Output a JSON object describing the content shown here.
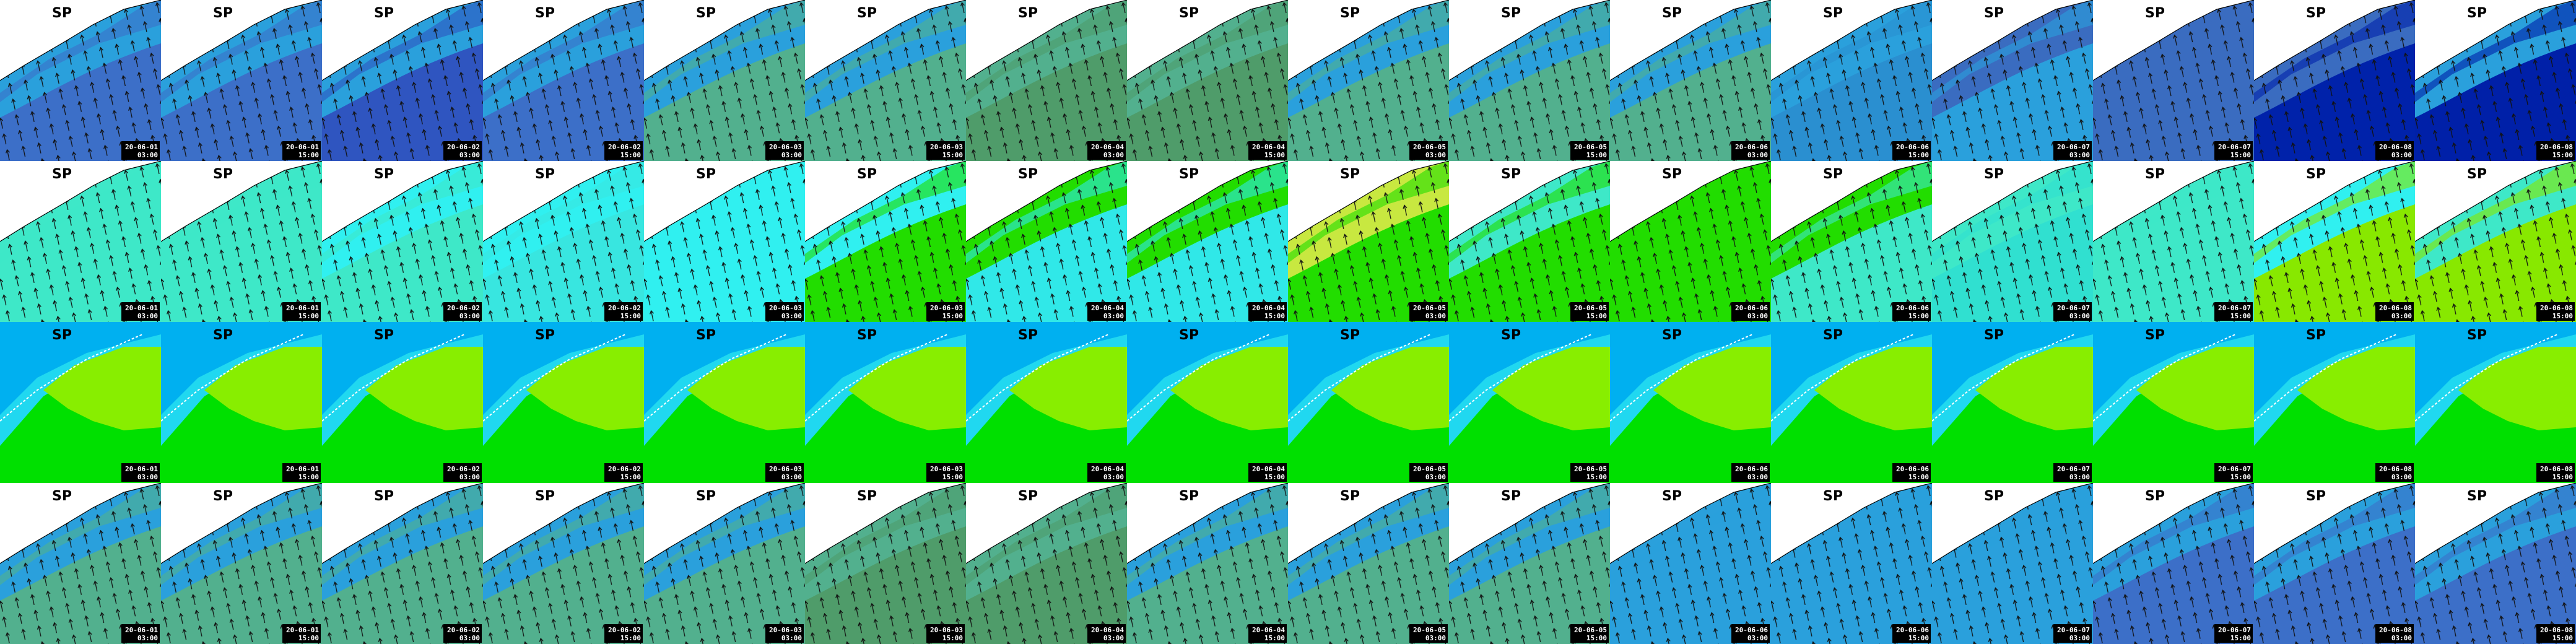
{
  "rows": [
    {
      "tiles": [
        {
          "title": "SP",
          "date": "20-06-01",
          "time": "03:00"
        },
        {
          "title": "SP",
          "date": "20-06-01",
          "time": "15:00"
        },
        {
          "title": "SP",
          "date": "20-06-02",
          "time": "03:00"
        },
        {
          "title": "SP",
          "date": "20-06-02",
          "time": "15:00"
        },
        {
          "title": "SP",
          "date": "20-06-03",
          "time": "03:00"
        },
        {
          "title": "SP",
          "date": "20-06-03",
          "time": "15:00"
        },
        {
          "title": "SP",
          "date": "20-06-04",
          "time": "03:00"
        },
        {
          "title": "SP",
          "date": "20-06-04",
          "time": "15:00"
        },
        {
          "title": "SP",
          "date": "20-06-05",
          "time": "03:00"
        },
        {
          "title": "SP",
          "date": "20-06-05",
          "time": "15:00"
        },
        {
          "title": "SP",
          "date": "20-06-06",
          "time": "03:00"
        },
        {
          "title": "SP",
          "date": "20-06-06",
          "time": "15:00"
        },
        {
          "title": "SP",
          "date": "20-06-07",
          "time": "03:00"
        },
        {
          "title": "SP",
          "date": "20-06-07",
          "time": "15:00"
        },
        {
          "title": "SP",
          "date": "20-06-08",
          "time": "03:00"
        },
        {
          "title": "SP",
          "date": "20-06-08",
          "time": "15:00"
        }
      ]
    },
    {
      "tiles": [
        {
          "title": "SP",
          "date": "20-06-01",
          "time": "03:00"
        },
        {
          "title": "SP",
          "date": "20-06-01",
          "time": "15:00"
        },
        {
          "title": "SP",
          "date": "20-06-02",
          "time": "03:00"
        },
        {
          "title": "SP",
          "date": "20-06-02",
          "time": "15:00"
        },
        {
          "title": "SP",
          "date": "20-06-03",
          "time": "03:00"
        },
        {
          "title": "SP",
          "date": "20-06-03",
          "time": "15:00"
        },
        {
          "title": "SP",
          "date": "20-06-04",
          "time": "03:00"
        },
        {
          "title": "SP",
          "date": "20-06-04",
          "time": "15:00"
        },
        {
          "title": "SP",
          "date": "20-06-05",
          "time": "03:00"
        },
        {
          "title": "SP",
          "date": "20-06-05",
          "time": "15:00"
        },
        {
          "title": "SP",
          "date": "20-06-06",
          "time": "03:00"
        },
        {
          "title": "SP",
          "date": "20-06-06",
          "time": "15:00"
        },
        {
          "title": "SP",
          "date": "20-06-07",
          "time": "03:00"
        },
        {
          "title": "SP",
          "date": "20-06-07",
          "time": "15:00"
        },
        {
          "title": "SP",
          "date": "20-06-08",
          "time": "03:00"
        },
        {
          "title": "SP",
          "date": "20-06-08",
          "time": "15:00"
        }
      ]
    },
    {
      "tiles": [
        {
          "title": "SP",
          "date": "20-06-01",
          "time": "03:00"
        },
        {
          "title": "SP",
          "date": "20-06-01",
          "time": "15:00"
        },
        {
          "title": "SP",
          "date": "20-06-02",
          "time": "03:00"
        },
        {
          "title": "SP",
          "date": "20-06-02",
          "time": "15:00"
        },
        {
          "title": "SP",
          "date": "20-06-03",
          "time": "03:00"
        },
        {
          "title": "SP",
          "date": "20-06-03",
          "time": "15:00"
        },
        {
          "title": "SP",
          "date": "20-06-04",
          "time": "03:00"
        },
        {
          "title": "SP",
          "date": "20-06-04",
          "time": "15:00"
        },
        {
          "title": "SP",
          "date": "20-06-05",
          "time": "03:00"
        },
        {
          "title": "SP",
          "date": "20-06-05",
          "time": "15:00"
        },
        {
          "title": "SP",
          "date": "20-06-06",
          "time": "03:00"
        },
        {
          "title": "SP",
          "date": "20-06-06",
          "time": "15:00"
        },
        {
          "title": "SP",
          "date": "20-06-07",
          "time": "03:00"
        },
        {
          "title": "SP",
          "date": "20-06-07",
          "time": "15:00"
        },
        {
          "title": "SP",
          "date": "20-06-08",
          "time": "03:00"
        },
        {
          "title": "SP",
          "date": "20-06-08",
          "time": "15:00"
        }
      ]
    },
    {
      "tiles": [
        {
          "title": "SP",
          "date": "20-06-01",
          "time": "03:00"
        },
        {
          "title": "SP",
          "date": "20-06-01",
          "time": "15:00"
        },
        {
          "title": "SP",
          "date": "20-06-02",
          "time": "03:00"
        },
        {
          "title": "SP",
          "date": "20-06-02",
          "time": "15:00"
        },
        {
          "title": "SP",
          "date": "20-06-03",
          "time": "03:00"
        },
        {
          "title": "SP",
          "date": "20-06-03",
          "time": "15:00"
        },
        {
          "title": "SP",
          "date": "20-06-04",
          "time": "03:00"
        },
        {
          "title": "SP",
          "date": "20-06-04",
          "time": "15:00"
        },
        {
          "title": "SP",
          "date": "20-06-05",
          "time": "03:00"
        },
        {
          "title": "SP",
          "date": "20-06-05",
          "time": "15:00"
        },
        {
          "title": "SP",
          "date": "20-06-06",
          "time": "03:00"
        },
        {
          "title": "SP",
          "date": "20-06-06",
          "time": "15:00"
        },
        {
          "title": "SP",
          "date": "20-06-07",
          "time": "03:00"
        },
        {
          "title": "SP",
          "date": "20-06-07",
          "time": "15:00"
        },
        {
          "title": "SP",
          "date": "20-06-08",
          "time": "03:00"
        },
        {
          "title": "SP",
          "date": "20-06-08",
          "time": "15:00"
        }
      ]
    }
  ]
}
